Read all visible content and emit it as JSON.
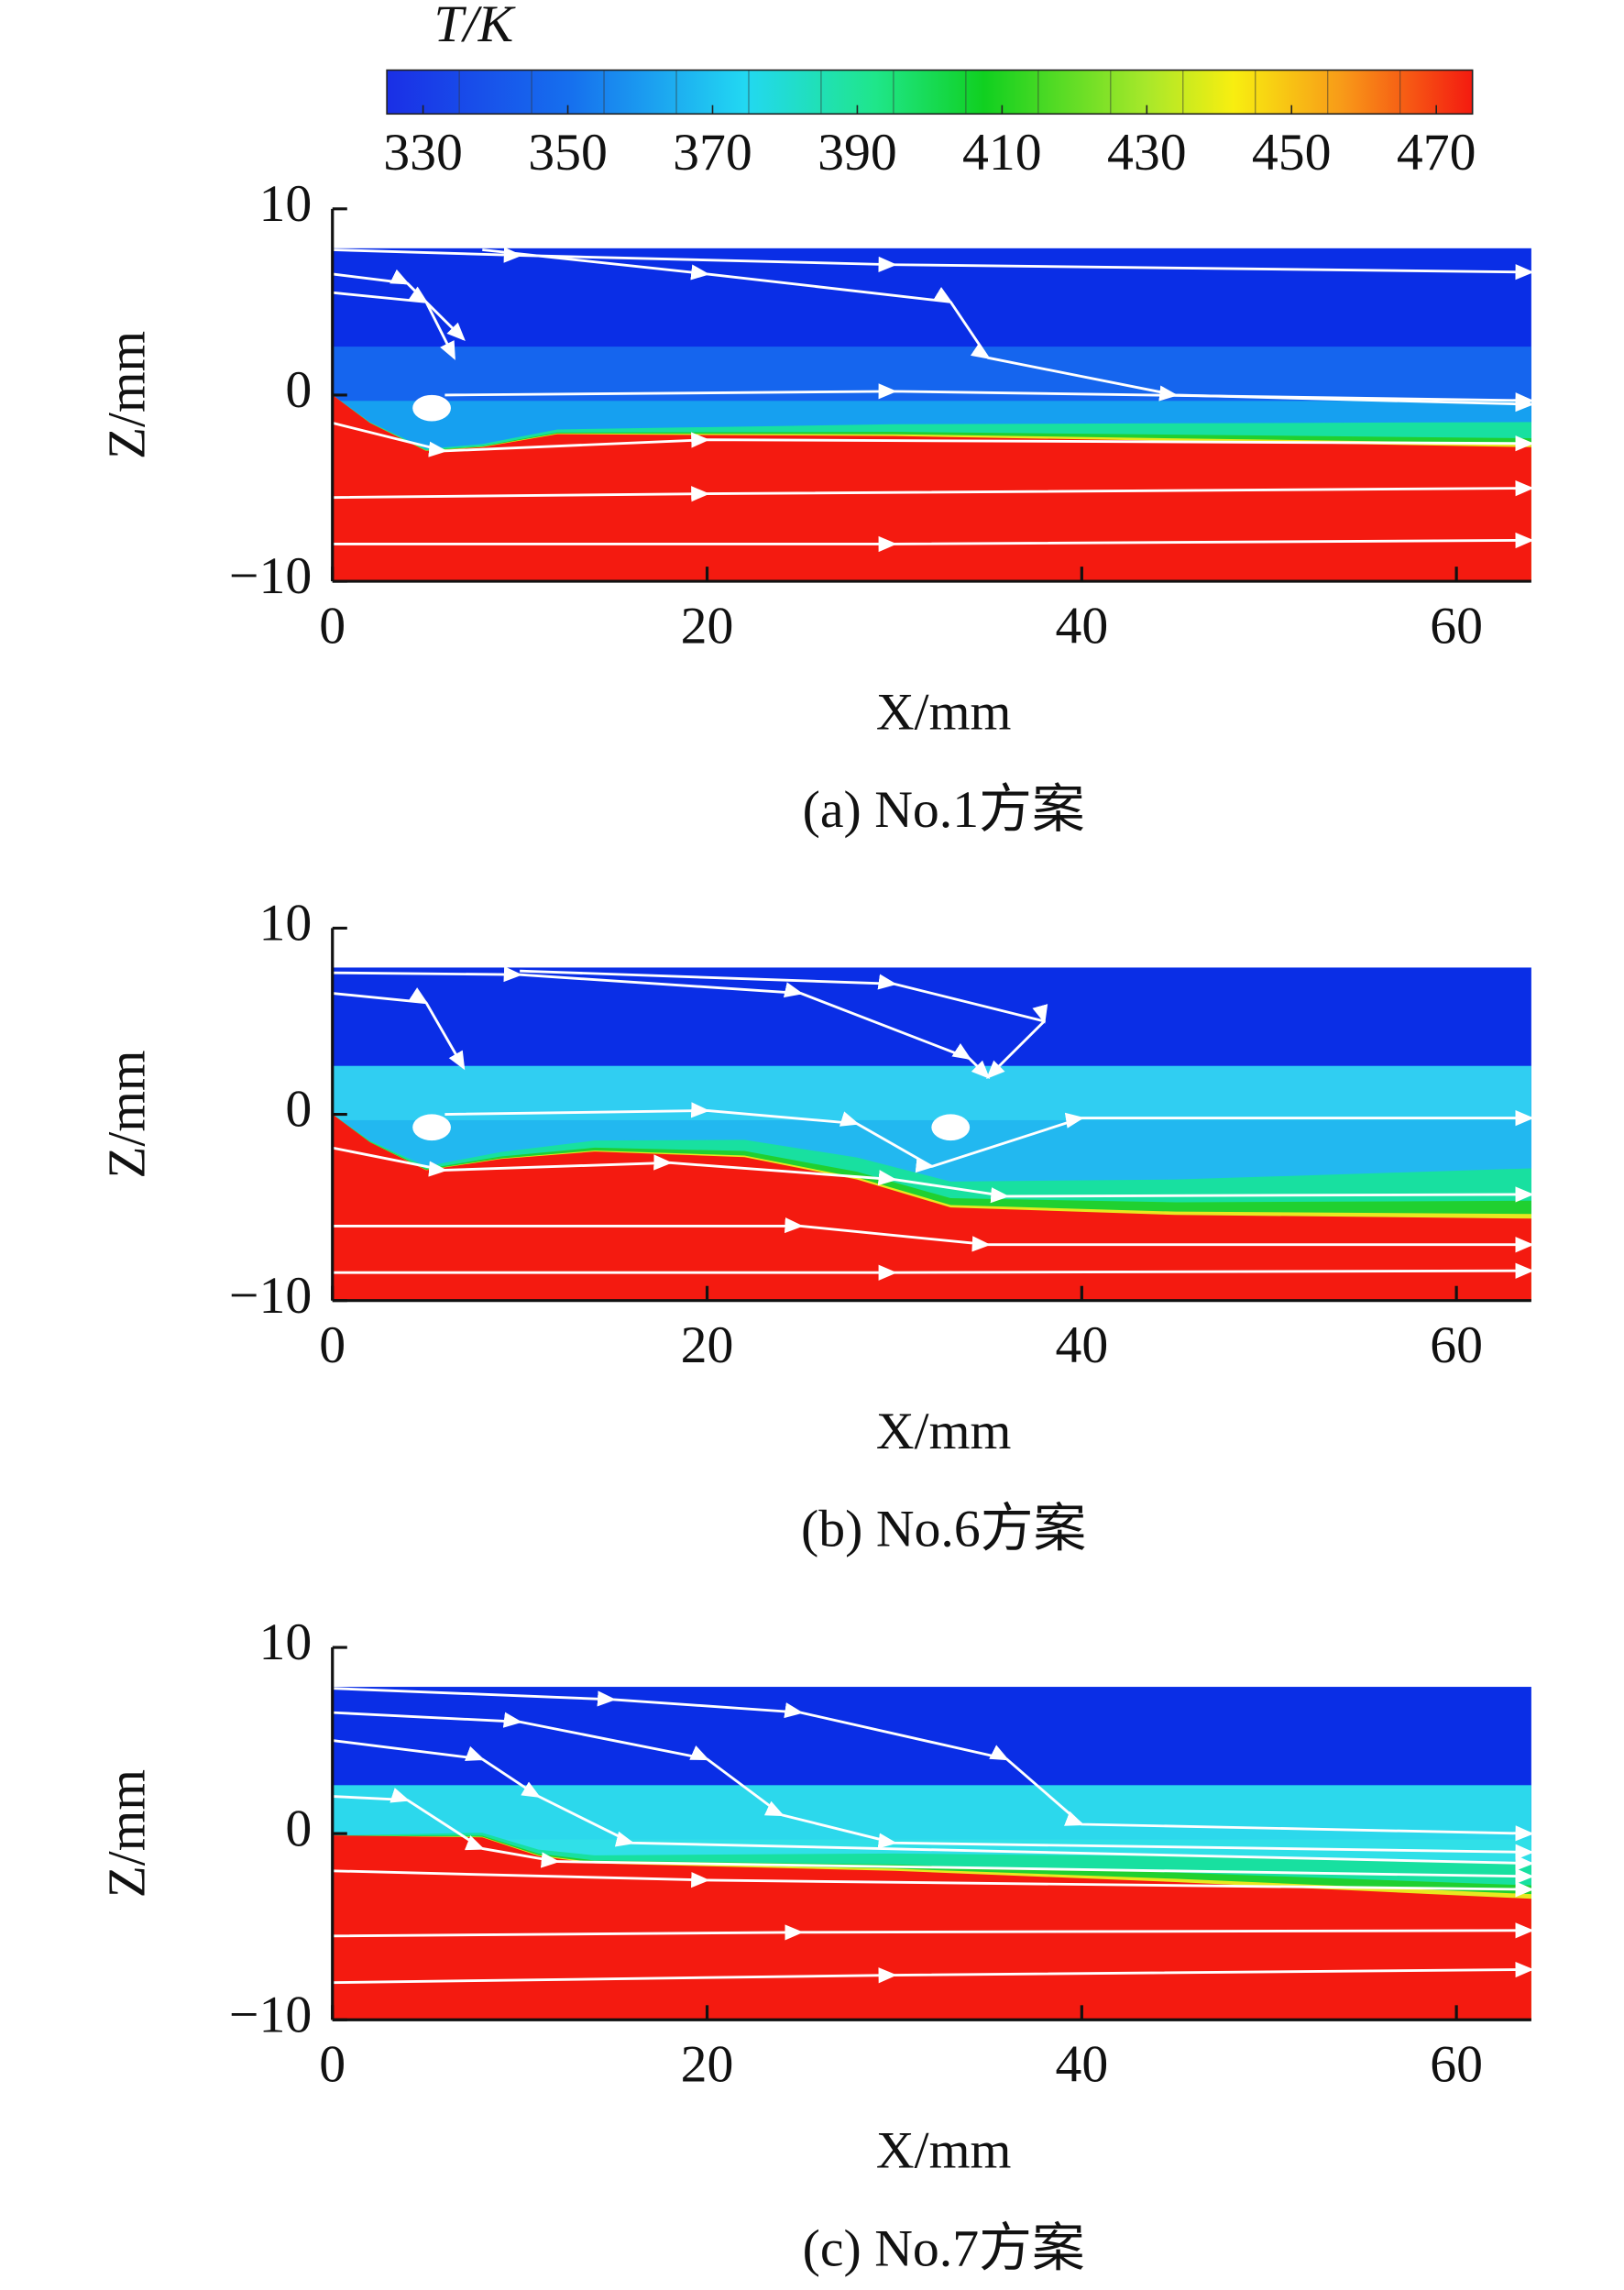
{
  "colorbar": {
    "label": "T/K",
    "lim": [
      325,
      475
    ],
    "ticks": [
      330,
      350,
      370,
      390,
      410,
      430,
      450,
      470
    ]
  },
  "chart_data": [
    {
      "type": "contour",
      "caption": "(a) No.1方案",
      "xlabel": "X/mm",
      "ylabel": "Z/mm",
      "xlim": [
        0,
        64
      ],
      "ylim": [
        -10,
        10
      ],
      "xticks": [
        0,
        20,
        40,
        60
      ],
      "yticks": [
        10,
        0,
        {
          "value": -10,
          "label": "−10"
        }
      ]
    },
    {
      "type": "contour",
      "caption": "(b) No.6方案",
      "xlabel": "X/mm",
      "ylabel": "Z/mm",
      "xlim": [
        0,
        64
      ],
      "ylim": [
        -10,
        10
      ],
      "xticks": [
        0,
        20,
        40,
        60
      ],
      "yticks": [
        10,
        0,
        {
          "value": -10,
          "label": "−10"
        }
      ]
    },
    {
      "type": "contour",
      "caption": "(c) No.7方案",
      "xlabel": "X/mm",
      "ylabel": "Z/mm",
      "xlim": [
        0,
        64
      ],
      "ylim": [
        -10,
        10
      ],
      "xticks": [
        0,
        20,
        40,
        60
      ],
      "yticks": [
        10,
        0,
        {
          "value": -10,
          "label": "−10"
        }
      ]
    }
  ]
}
